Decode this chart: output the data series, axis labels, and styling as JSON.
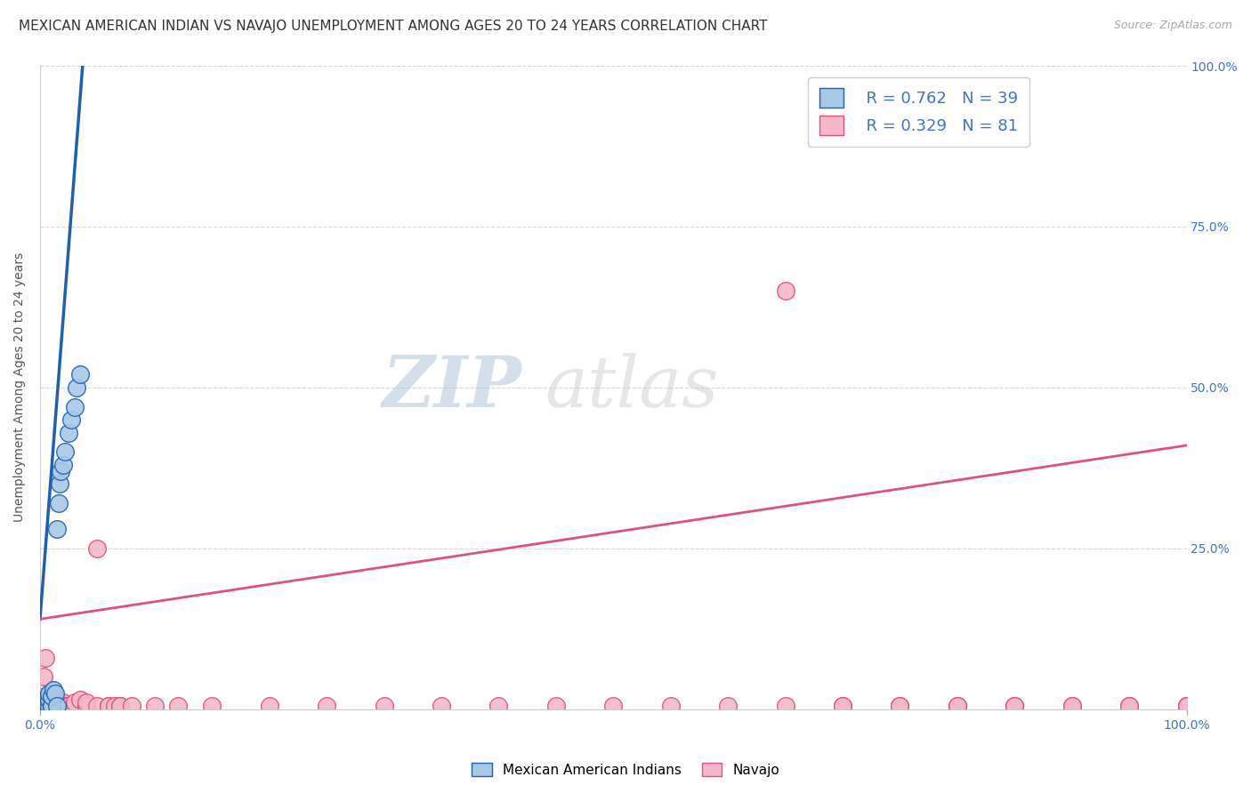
{
  "title": "MEXICAN AMERICAN INDIAN VS NAVAJO UNEMPLOYMENT AMONG AGES 20 TO 24 YEARS CORRELATION CHART",
  "source": "Source: ZipAtlas.com",
  "ylabel": "Unemployment Among Ages 20 to 24 years",
  "legend_blue_r": "R = 0.762",
  "legend_blue_n": "N = 39",
  "legend_pink_r": "R = 0.329",
  "legend_pink_n": "N = 81",
  "legend_blue_label": "Mexican American Indians",
  "legend_pink_label": "Navajo",
  "blue_color": "#a8c8e8",
  "pink_color": "#f4b8c8",
  "blue_line_color": "#2060b0",
  "pink_line_color": "#e05080",
  "watermark_zip": "ZIP",
  "watermark_atlas": "atlas",
  "bg_color": "#ffffff",
  "title_fontsize": 11,
  "axis_label_fontsize": 10,
  "tick_fontsize": 10,
  "right_ytick_color": "#4472c4",
  "grid_color": "#d8d8d8",
  "blue_scatter": [
    [
      0.003,
      0.005
    ],
    [
      0.003,
      0.005
    ],
    [
      0.003,
      0.005
    ],
    [
      0.003,
      0.008
    ],
    [
      0.004,
      0.005
    ],
    [
      0.004,
      0.005
    ],
    [
      0.004,
      0.008
    ],
    [
      0.004,
      0.01
    ],
    [
      0.005,
      0.005
    ],
    [
      0.005,
      0.005
    ],
    [
      0.005,
      0.01
    ],
    [
      0.005,
      0.012
    ],
    [
      0.005,
      0.015
    ],
    [
      0.006,
      0.005
    ],
    [
      0.006,
      0.008
    ],
    [
      0.006,
      0.015
    ],
    [
      0.007,
      0.005
    ],
    [
      0.007,
      0.012
    ],
    [
      0.007,
      0.02
    ],
    [
      0.008,
      0.005
    ],
    [
      0.008,
      0.015
    ],
    [
      0.008,
      0.025
    ],
    [
      0.01,
      0.005
    ],
    [
      0.01,
      0.005
    ],
    [
      0.01,
      0.02
    ],
    [
      0.012,
      0.03
    ],
    [
      0.013,
      0.025
    ],
    [
      0.015,
      0.005
    ],
    [
      0.015,
      0.28
    ],
    [
      0.016,
      0.32
    ],
    [
      0.017,
      0.35
    ],
    [
      0.018,
      0.37
    ],
    [
      0.02,
      0.38
    ],
    [
      0.022,
      0.4
    ],
    [
      0.025,
      0.43
    ],
    [
      0.027,
      0.45
    ],
    [
      0.03,
      0.47
    ],
    [
      0.032,
      0.5
    ],
    [
      0.035,
      0.52
    ]
  ],
  "pink_scatter": [
    [
      0.003,
      0.005
    ],
    [
      0.003,
      0.005
    ],
    [
      0.003,
      0.01
    ],
    [
      0.003,
      0.05
    ],
    [
      0.004,
      0.005
    ],
    [
      0.004,
      0.005
    ],
    [
      0.004,
      0.01
    ],
    [
      0.005,
      0.005
    ],
    [
      0.005,
      0.005
    ],
    [
      0.005,
      0.01
    ],
    [
      0.005,
      0.02
    ],
    [
      0.005,
      0.08
    ],
    [
      0.006,
      0.005
    ],
    [
      0.006,
      0.005
    ],
    [
      0.006,
      0.01
    ],
    [
      0.007,
      0.005
    ],
    [
      0.007,
      0.01
    ],
    [
      0.008,
      0.005
    ],
    [
      0.008,
      0.01
    ],
    [
      0.008,
      0.015
    ],
    [
      0.01,
      0.005
    ],
    [
      0.01,
      0.005
    ],
    [
      0.01,
      0.01
    ],
    [
      0.012,
      0.005
    ],
    [
      0.012,
      0.01
    ],
    [
      0.013,
      0.005
    ],
    [
      0.013,
      0.01
    ],
    [
      0.015,
      0.005
    ],
    [
      0.015,
      0.005
    ],
    [
      0.015,
      0.01
    ],
    [
      0.015,
      0.015
    ],
    [
      0.018,
      0.005
    ],
    [
      0.018,
      0.01
    ],
    [
      0.02,
      0.005
    ],
    [
      0.02,
      0.01
    ],
    [
      0.022,
      0.005
    ],
    [
      0.025,
      0.005
    ],
    [
      0.025,
      0.005
    ],
    [
      0.03,
      0.005
    ],
    [
      0.03,
      0.01
    ],
    [
      0.035,
      0.015
    ],
    [
      0.04,
      0.005
    ],
    [
      0.04,
      0.005
    ],
    [
      0.04,
      0.01
    ],
    [
      0.05,
      0.005
    ],
    [
      0.05,
      0.25
    ],
    [
      0.06,
      0.005
    ],
    [
      0.06,
      0.005
    ],
    [
      0.065,
      0.005
    ],
    [
      0.07,
      0.005
    ],
    [
      0.07,
      0.005
    ],
    [
      0.08,
      0.005
    ],
    [
      0.1,
      0.005
    ],
    [
      0.12,
      0.005
    ],
    [
      0.15,
      0.005
    ],
    [
      0.2,
      0.005
    ],
    [
      0.25,
      0.005
    ],
    [
      0.3,
      0.005
    ],
    [
      0.35,
      0.005
    ],
    [
      0.4,
      0.005
    ],
    [
      0.45,
      0.005
    ],
    [
      0.5,
      0.005
    ],
    [
      0.55,
      0.005
    ],
    [
      0.6,
      0.005
    ],
    [
      0.65,
      0.005
    ],
    [
      0.65,
      0.65
    ],
    [
      0.7,
      0.005
    ],
    [
      0.7,
      0.005
    ],
    [
      0.75,
      0.005
    ],
    [
      0.75,
      0.005
    ],
    [
      0.8,
      0.005
    ],
    [
      0.8,
      0.005
    ],
    [
      0.85,
      0.005
    ],
    [
      0.85,
      0.005
    ],
    [
      0.9,
      0.005
    ],
    [
      0.9,
      0.005
    ],
    [
      0.95,
      0.005
    ],
    [
      0.95,
      0.005
    ],
    [
      1.0,
      0.005
    ],
    [
      1.0,
      0.005
    ],
    [
      1.0,
      0.005
    ]
  ],
  "blue_trendline_x": [
    0.0,
    0.038
  ],
  "blue_trendline_y": [
    0.14,
    1.02
  ],
  "pink_trendline_x": [
    0.0,
    1.0
  ],
  "pink_trendline_y": [
    0.14,
    0.41
  ],
  "xlim": [
    0.0,
    1.0
  ],
  "ylim": [
    0.0,
    1.0
  ],
  "xticks": [
    0.0,
    1.0
  ],
  "xticklabels": [
    "0.0%",
    "100.0%"
  ],
  "yticks": [
    0.0,
    0.25,
    0.5,
    0.75,
    1.0
  ],
  "right_yticklabels": [
    "",
    "25.0%",
    "50.0%",
    "75.0%",
    "100.0%"
  ]
}
